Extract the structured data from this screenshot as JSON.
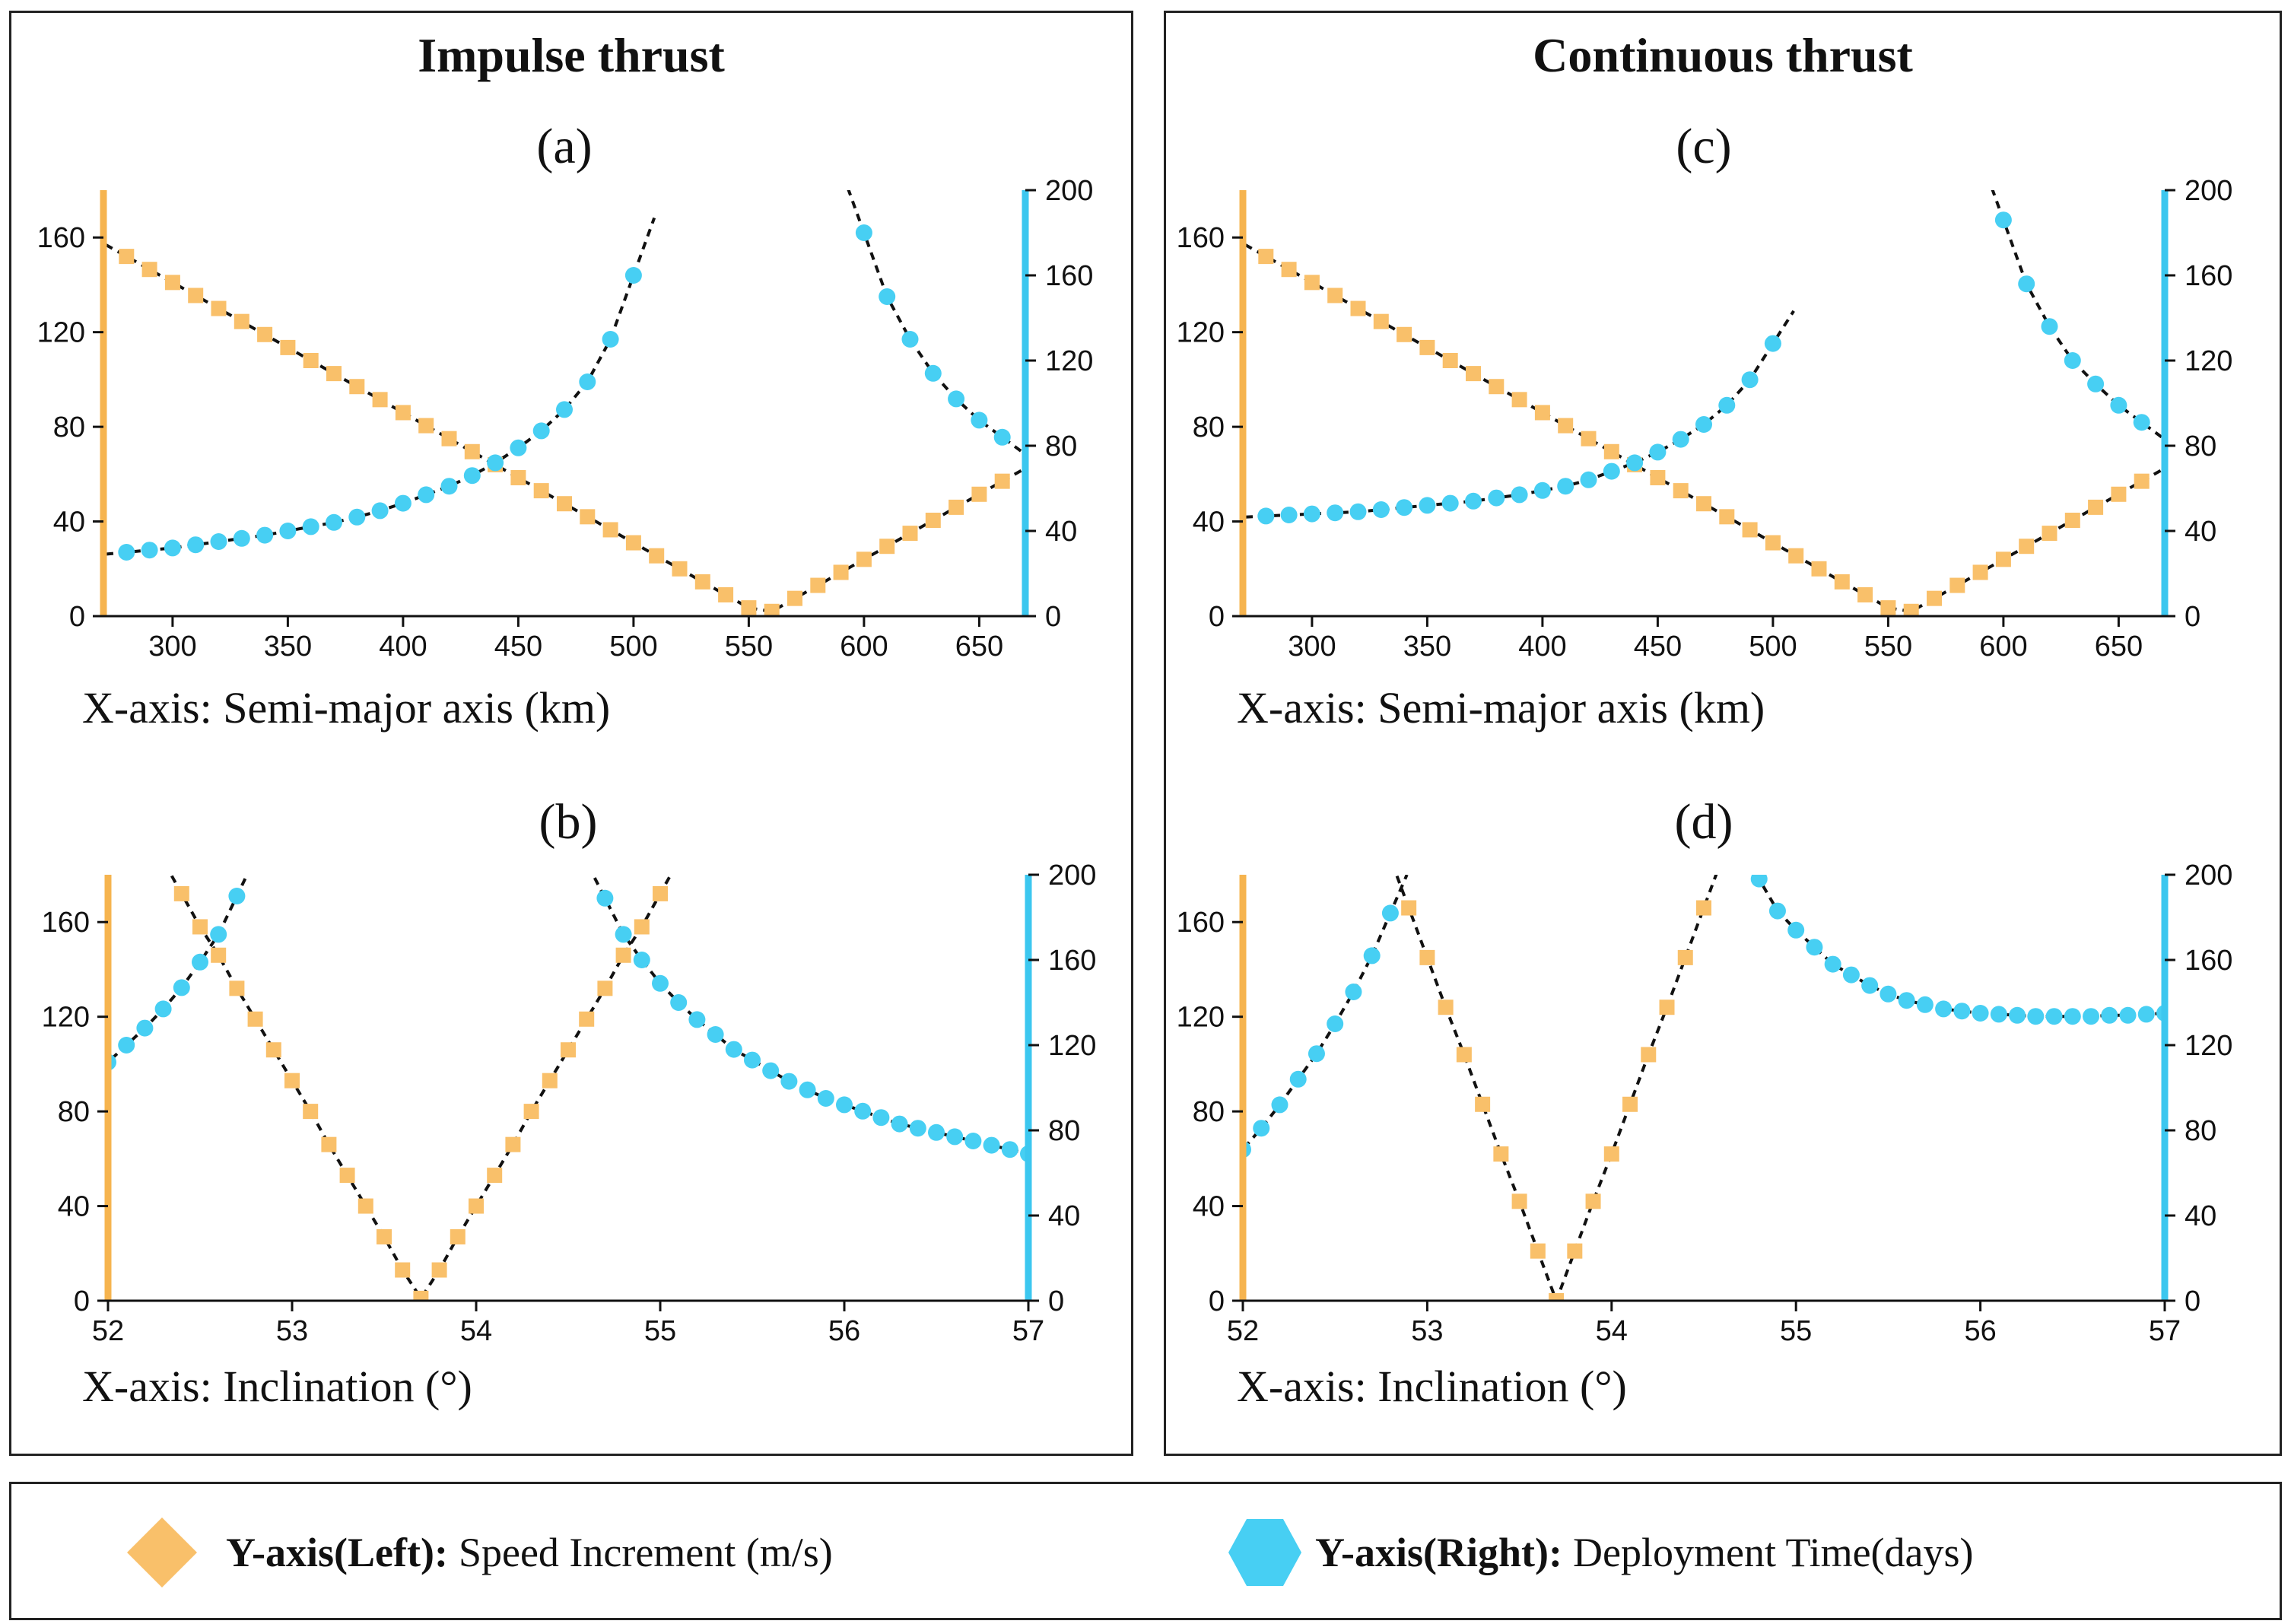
{
  "titles": {
    "left": "Impulse thrust",
    "right": "Continuous thrust"
  },
  "legend": {
    "left_bold": "Y-axis(Left):",
    "left_text": "Speed Increment (m/s)",
    "right_bold": "Y-axis(Right):",
    "right_text": "Deployment Time(days)"
  },
  "colors": {
    "speed": "#F9C06A",
    "time": "#47CFF3",
    "speed_axis": "#F6B44F",
    "time_axis": "#3CC7EF",
    "fit": "#111111"
  },
  "chart_data": [
    {
      "id": "a",
      "type": "scatter",
      "title": "(a)",
      "xlabel": "X-axis: Semi-major axis (km)",
      "xlim": [
        270,
        670
      ],
      "xticks": [
        300,
        350,
        400,
        450,
        500,
        550,
        600,
        650
      ],
      "ylim_left": [
        0,
        180
      ],
      "yticks_left": [
        0,
        40,
        80,
        120,
        160
      ],
      "ylim_right": [
        0,
        200
      ],
      "yticks_right": [
        0,
        40,
        80,
        120,
        160,
        200
      ],
      "series": [
        {
          "name": "Speed Increment (m/s)",
          "axis": "left",
          "x": [
            280,
            290,
            300,
            310,
            320,
            330,
            340,
            350,
            360,
            370,
            380,
            390,
            400,
            410,
            420,
            430,
            440,
            450,
            460,
            470,
            480,
            490,
            500,
            510,
            520,
            530,
            540,
            550,
            560,
            570,
            580,
            590,
            600,
            610,
            620,
            630,
            640,
            650,
            660
          ],
          "y": [
            152,
            146.5,
            141,
            135.5,
            130,
            124.5,
            119,
            113.5,
            108,
            102.5,
            97,
            91.5,
            86,
            80.5,
            75,
            69.5,
            64,
            58.5,
            53,
            47.5,
            42,
            36.5,
            31,
            25.5,
            20,
            14.5,
            9,
            3.5,
            2,
            7.5,
            13,
            18.5,
            24,
            29.5,
            35,
            40.5,
            46,
            51.5,
            57
          ]
        },
        {
          "name": "Deployment Time(days)",
          "axis": "right",
          "x": [
            280,
            290,
            300,
            310,
            320,
            330,
            340,
            350,
            360,
            370,
            380,
            390,
            400,
            410,
            420,
            430,
            440,
            450,
            460,
            470,
            480,
            490,
            500,
            600,
            610,
            620,
            630,
            640,
            650,
            660
          ],
          "y": [
            30,
            31,
            32,
            33.5,
            35,
            36.5,
            38,
            40,
            42,
            44,
            46.5,
            49.5,
            53,
            57,
            61,
            66,
            72,
            79,
            87,
            97,
            110,
            130,
            160,
            180,
            150,
            130,
            114,
            102,
            92,
            84
          ]
        }
      ]
    },
    {
      "id": "b",
      "type": "scatter",
      "title": "(b)",
      "xlabel": "X-axis: Inclination (°)",
      "xlim": [
        52,
        57
      ],
      "xticks": [
        52,
        53,
        54,
        55,
        56,
        57
      ],
      "ylim_left": [
        0,
        180
      ],
      "yticks_left": [
        0,
        40,
        80,
        120,
        160
      ],
      "ylim_right": [
        0,
        200
      ],
      "yticks_right": [
        0,
        40,
        80,
        120,
        160,
        200
      ],
      "series": [
        {
          "name": "Speed Increment (m/s)",
          "axis": "left",
          "x": [
            52.4,
            52.5,
            52.6,
            52.7,
            52.8,
            52.9,
            53.0,
            53.1,
            53.2,
            53.3,
            53.4,
            53.5,
            53.6,
            53.7,
            53.8,
            53.9,
            54.0,
            54.1,
            54.2,
            54.3,
            54.4,
            54.5,
            54.6,
            54.7,
            54.8,
            54.9,
            55.0
          ],
          "y": [
            172,
            158,
            146,
            132,
            119,
            106,
            93,
            80,
            66,
            53,
            40,
            27,
            13,
            1,
            13,
            27,
            40,
            53,
            66,
            80,
            93,
            106,
            119,
            132,
            146,
            158,
            172
          ]
        },
        {
          "name": "Deployment Time(days)",
          "axis": "right",
          "x": [
            52.0,
            52.1,
            52.2,
            52.3,
            52.4,
            52.5,
            52.6,
            52.7,
            54.7,
            54.8,
            54.9,
            55.0,
            55.1,
            55.2,
            55.3,
            55.4,
            55.5,
            55.6,
            55.7,
            55.8,
            55.9,
            56.0,
            56.1,
            56.2,
            56.3,
            56.4,
            56.5,
            56.6,
            56.7,
            56.8,
            56.9,
            57.0
          ],
          "y": [
            112,
            120,
            128,
            137,
            147,
            159,
            172,
            190,
            189,
            172,
            160,
            149,
            140,
            132,
            125,
            118,
            113,
            108,
            103,
            99,
            95,
            92,
            89,
            86,
            83,
            81,
            79,
            77,
            75,
            73,
            71,
            69
          ]
        }
      ]
    },
    {
      "id": "c",
      "type": "scatter",
      "title": "(c)",
      "xlabel": "X-axis: Semi-major axis (km)",
      "xlim": [
        270,
        670
      ],
      "xticks": [
        300,
        350,
        400,
        450,
        500,
        550,
        600,
        650
      ],
      "ylim_left": [
        0,
        180
      ],
      "yticks_left": [
        0,
        40,
        80,
        120,
        160
      ],
      "ylim_right": [
        0,
        200
      ],
      "yticks_right": [
        0,
        40,
        80,
        120,
        160,
        200
      ],
      "series": [
        {
          "name": "Speed Increment (m/s)",
          "axis": "left",
          "x": [
            280,
            290,
            300,
            310,
            320,
            330,
            340,
            350,
            360,
            370,
            380,
            390,
            400,
            410,
            420,
            430,
            440,
            450,
            460,
            470,
            480,
            490,
            500,
            510,
            520,
            530,
            540,
            550,
            560,
            570,
            580,
            590,
            600,
            610,
            620,
            630,
            640,
            650,
            660
          ],
          "y": [
            152,
            146.5,
            141,
            135.5,
            130,
            124.5,
            119,
            113.5,
            108,
            102.5,
            97,
            91.5,
            86,
            80.5,
            75,
            69.5,
            64,
            58.5,
            53,
            47.5,
            42,
            36.5,
            31,
            25.5,
            20,
            14.5,
            9,
            3.5,
            2,
            7.5,
            13,
            18.5,
            24,
            29.5,
            35,
            40.5,
            46,
            51.5,
            57
          ]
        },
        {
          "name": "Deployment Time(days)",
          "axis": "right",
          "x": [
            280,
            290,
            300,
            310,
            320,
            330,
            340,
            350,
            360,
            370,
            380,
            390,
            400,
            410,
            420,
            430,
            440,
            450,
            460,
            470,
            480,
            490,
            500,
            600,
            610,
            620,
            630,
            640,
            650,
            660
          ],
          "y": [
            47,
            47.5,
            48,
            48.5,
            49,
            50,
            51,
            52,
            53,
            54,
            55.5,
            57,
            59,
            61,
            64,
            68,
            72,
            77,
            83,
            90,
            99,
            111,
            128,
            186,
            156,
            136,
            120,
            109,
            99,
            91
          ]
        }
      ]
    },
    {
      "id": "d",
      "type": "scatter",
      "title": "(d)",
      "xlabel": "X-axis: Inclination (°)",
      "xlim": [
        52,
        57
      ],
      "xticks": [
        52,
        53,
        54,
        55,
        56,
        57
      ],
      "ylim_left": [
        0,
        180
      ],
      "yticks_left": [
        0,
        40,
        80,
        120,
        160
      ],
      "ylim_right": [
        0,
        200
      ],
      "yticks_right": [
        0,
        40,
        80,
        120,
        160,
        200
      ],
      "series": [
        {
          "name": "Speed Increment (m/s)",
          "axis": "left",
          "x": [
            52.9,
            53.0,
            53.1,
            53.2,
            53.3,
            53.4,
            53.5,
            53.6,
            53.7,
            53.8,
            53.9,
            54.0,
            54.1,
            54.2,
            54.3,
            54.4,
            54.5
          ],
          "y": [
            166,
            145,
            124,
            104,
            83,
            62,
            42,
            21,
            0,
            21,
            42,
            62,
            83,
            104,
            124,
            145,
            166
          ]
        },
        {
          "name": "Deployment Time(days)",
          "axis": "right",
          "x": [
            52.0,
            52.1,
            52.2,
            52.3,
            52.4,
            52.5,
            52.6,
            52.7,
            52.8,
            54.8,
            54.9,
            55.0,
            55.1,
            55.2,
            55.3,
            55.4,
            55.5,
            55.6,
            55.7,
            55.8,
            55.9,
            56.0,
            56.1,
            56.2,
            56.3,
            56.4,
            56.5,
            56.6,
            56.7,
            56.8,
            56.9,
            57.0
          ],
          "y": [
            71,
            81,
            92,
            104,
            116,
            130,
            145,
            162,
            182,
            198,
            183,
            174,
            166,
            158,
            153,
            148,
            144,
            141,
            139,
            137,
            136,
            135,
            134.5,
            134,
            133.5,
            133.5,
            133.5,
            133.5,
            134,
            134,
            134.5,
            135
          ]
        }
      ]
    }
  ]
}
